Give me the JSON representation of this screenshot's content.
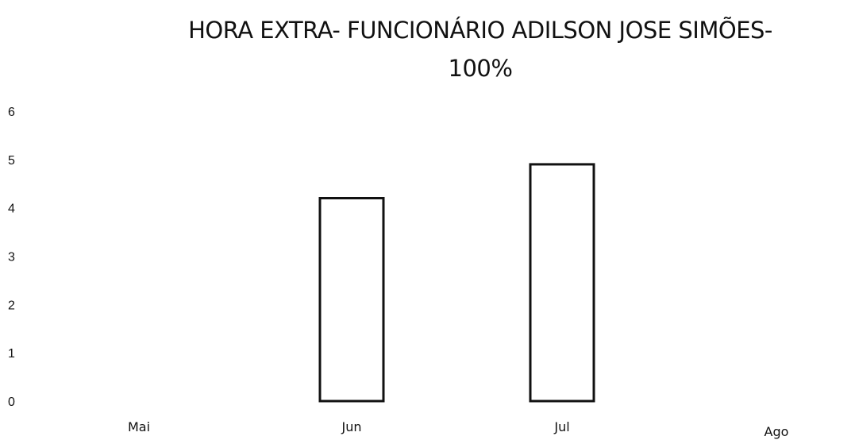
{
  "chart_data": {
    "type": "bar",
    "title_lines": [
      "HORA EXTRA- FUNCIONÁRIO ADILSON JOSE SIMÕES-",
      "100%"
    ],
    "xlabel": "",
    "ylabel": "",
    "categories": [
      "Mai",
      "Jun",
      "Jul",
      "Ago"
    ],
    "values": [
      0,
      4.2,
      4.9,
      0
    ],
    "ylim": [
      0,
      6
    ],
    "yticks": [
      "0",
      "1",
      "2",
      "3",
      "4",
      "5",
      "6"
    ],
    "grid": false,
    "legend": "none",
    "bar_fill": "#ffffff",
    "bar_stroke": "#111111"
  }
}
